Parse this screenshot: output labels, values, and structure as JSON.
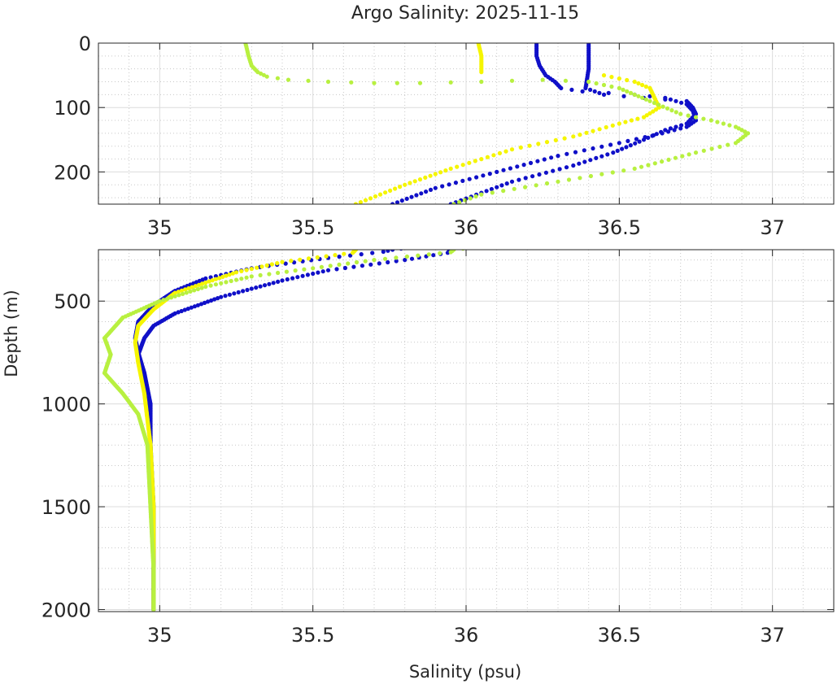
{
  "chart_data": {
    "type": "scatter",
    "title": "Argo Salinity: 2025-11-15",
    "xlabel": "Salinity (psu)",
    "ylabel": "Depth (m)",
    "grid": true,
    "colors": {
      "blue": "#1010c8",
      "yellow": "#f5f500",
      "lime": "#b8f040",
      "axis": "#262626",
      "grid_major": "#dcdcdc",
      "grid_minor": "#c8c8c8"
    },
    "panels": [
      {
        "name": "upper",
        "xlim": [
          34.8,
          37.2
        ],
        "ylim": [
          0,
          250
        ],
        "y_reversed": true,
        "xticks": [
          35,
          35.5,
          36,
          36.5,
          37
        ],
        "xtick_labels": [
          "35",
          "35.5",
          "36",
          "36.5",
          "37"
        ],
        "yticks": [
          0,
          100,
          200
        ],
        "ytick_labels": [
          "0",
          "100",
          "200"
        ]
      },
      {
        "name": "lower",
        "xlim": [
          34.8,
          37.2
        ],
        "ylim": [
          250,
          2010
        ],
        "y_reversed": true,
        "xticks": [
          35,
          35.5,
          36,
          36.5,
          37
        ],
        "xtick_labels": [
          "35",
          "35.5",
          "36",
          "36.5",
          "37"
        ],
        "yticks": [
          500,
          1000,
          1500,
          2000
        ],
        "ytick_labels": [
          "500",
          "1000",
          "1500",
          "2000"
        ]
      }
    ],
    "series": [
      {
        "color": "blue",
        "profile_a": [
          [
            36.23,
            0
          ],
          [
            36.23,
            20
          ],
          [
            36.24,
            35
          ],
          [
            36.26,
            50
          ],
          [
            36.29,
            60
          ],
          [
            36.31,
            70
          ],
          [
            36.38,
            75
          ],
          [
            36.55,
            80
          ],
          [
            36.65,
            85
          ],
          [
            36.72,
            95
          ],
          [
            36.74,
            105
          ],
          [
            36.75,
            120
          ],
          [
            36.72,
            130
          ],
          [
            36.64,
            140
          ],
          [
            36.5,
            155
          ],
          [
            36.3,
            175
          ],
          [
            36.1,
            200
          ],
          [
            35.9,
            225
          ],
          [
            35.76,
            250
          ],
          [
            35.73,
            260
          ],
          [
            35.55,
            290
          ],
          [
            35.3,
            340
          ],
          [
            35.15,
            390
          ],
          [
            35.05,
            450
          ],
          [
            34.98,
            520
          ],
          [
            34.93,
            600
          ],
          [
            34.92,
            680
          ],
          [
            34.93,
            750
          ],
          [
            34.95,
            850
          ],
          [
            34.97,
            1000
          ],
          [
            34.97,
            1200
          ],
          [
            34.98,
            1500
          ],
          [
            34.98,
            1800
          ],
          [
            34.98,
            2000
          ]
        ],
        "profile_b": [
          [
            36.4,
            0
          ],
          [
            36.4,
            40
          ],
          [
            36.39,
            70
          ],
          [
            36.45,
            80
          ],
          [
            36.58,
            85
          ],
          [
            36.72,
            90
          ],
          [
            36.74,
            100
          ],
          [
            36.75,
            110
          ],
          [
            36.72,
            125
          ],
          [
            36.65,
            135
          ],
          [
            36.58,
            150
          ],
          [
            36.48,
            170
          ],
          [
            36.35,
            190
          ],
          [
            36.15,
            215
          ],
          [
            35.95,
            250
          ],
          [
            35.94,
            265
          ],
          [
            35.8,
            300
          ],
          [
            35.55,
            350
          ],
          [
            35.4,
            400
          ],
          [
            35.2,
            480
          ],
          [
            35.05,
            560
          ],
          [
            34.98,
            620
          ],
          [
            34.95,
            680
          ],
          [
            34.93,
            760
          ],
          [
            34.95,
            900
          ],
          [
            34.97,
            1100
          ],
          [
            34.97,
            1400
          ],
          [
            34.98,
            1700
          ],
          [
            34.98,
            2000
          ]
        ]
      },
      {
        "color": "yellow",
        "profile_a": [
          [
            36.04,
            0
          ],
          [
            36.05,
            20
          ],
          [
            36.05,
            45
          ]
        ],
        "profile_b": [
          [
            36.45,
            50
          ],
          [
            36.55,
            60
          ],
          [
            36.6,
            70
          ],
          [
            36.62,
            90
          ],
          [
            36.63,
            100
          ],
          [
            36.58,
            115
          ],
          [
            36.5,
            125
          ],
          [
            36.35,
            145
          ],
          [
            36.15,
            165
          ],
          [
            35.95,
            195
          ],
          [
            35.8,
            220
          ],
          [
            35.64,
            250
          ],
          [
            35.63,
            265
          ],
          [
            35.4,
            310
          ],
          [
            35.25,
            360
          ],
          [
            35.15,
            410
          ],
          [
            35.05,
            460
          ],
          [
            34.98,
            540
          ],
          [
            34.93,
            620
          ],
          [
            34.92,
            700
          ],
          [
            34.93,
            800
          ],
          [
            34.95,
            950
          ],
          [
            34.97,
            1200
          ],
          [
            34.98,
            1500
          ],
          [
            34.98,
            1800
          ],
          [
            34.98,
            2000
          ]
        ]
      },
      {
        "color": "lime",
        "profile_a": [
          [
            35.28,
            0
          ],
          [
            35.29,
            20
          ],
          [
            35.3,
            35
          ],
          [
            35.32,
            45
          ],
          [
            35.35,
            52
          ],
          [
            35.42,
            57
          ],
          [
            35.55,
            60
          ],
          [
            35.7,
            62
          ],
          [
            35.85,
            62
          ],
          [
            36.05,
            60
          ],
          [
            36.25,
            57
          ],
          [
            36.4,
            60
          ],
          [
            36.5,
            70
          ],
          [
            36.55,
            80
          ],
          [
            36.6,
            90
          ],
          [
            36.7,
            110
          ],
          [
            36.8,
            120
          ],
          [
            36.88,
            130
          ],
          [
            36.92,
            140
          ],
          [
            36.88,
            155
          ],
          [
            36.75,
            170
          ],
          [
            36.55,
            195
          ],
          [
            36.3,
            215
          ],
          [
            36.05,
            235
          ],
          [
            35.96,
            250
          ],
          [
            35.95,
            262
          ],
          [
            35.7,
            300
          ],
          [
            35.5,
            340
          ],
          [
            35.3,
            380
          ],
          [
            35.15,
            430
          ],
          [
            35.0,
            500
          ],
          [
            34.88,
            580
          ],
          [
            34.82,
            680
          ],
          [
            34.84,
            760
          ],
          [
            34.82,
            850
          ],
          [
            34.88,
            950
          ],
          [
            34.93,
            1050
          ],
          [
            34.96,
            1200
          ],
          [
            34.97,
            1500
          ],
          [
            34.98,
            1800
          ],
          [
            34.98,
            2000
          ]
        ]
      }
    ]
  }
}
